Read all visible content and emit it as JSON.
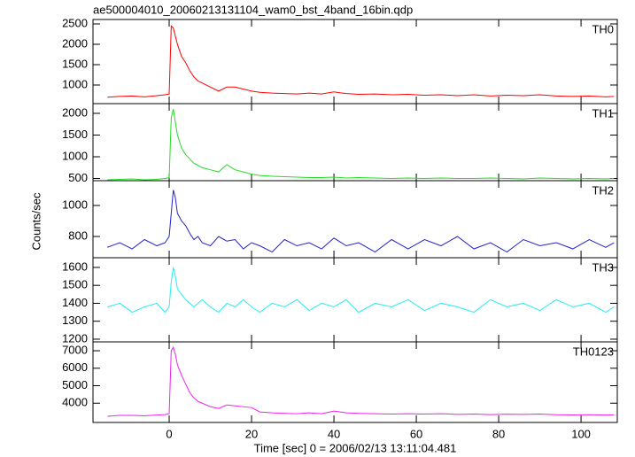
{
  "chart_data": [
    {
      "type": "line",
      "title": "ae500004010_20060213131104_wam0_bst_4band_16bin.qdp",
      "x": [
        -15,
        -12,
        -9,
        -6,
        -3,
        -1,
        0,
        0.5,
        1,
        1.5,
        2,
        3,
        4,
        5,
        6,
        7,
        8,
        10,
        12,
        14,
        16,
        18,
        20,
        22,
        25,
        28,
        31,
        34,
        37,
        40,
        43,
        46,
        50,
        54,
        58,
        62,
        66,
        70,
        74,
        78,
        82,
        86,
        90,
        94,
        98,
        102,
        106,
        108
      ],
      "xlim": [
        -18.5,
        108.8
      ],
      "ylim": [
        543,
        2609
      ],
      "yticks": [
        1000,
        1500,
        2000,
        2500
      ],
      "series": [
        {
          "name": "TH0",
          "color": "#ff0000",
          "values": [
            700,
            720,
            730,
            710,
            740,
            760,
            780,
            2450,
            2400,
            2200,
            2000,
            1700,
            1550,
            1350,
            1200,
            1100,
            1050,
            950,
            850,
            950,
            950,
            900,
            850,
            820,
            800,
            790,
            780,
            800,
            780,
            830,
            790,
            770,
            780,
            760,
            770,
            750,
            760,
            740,
            760,
            730,
            750,
            740,
            760,
            730,
            720,
            730,
            710,
            720
          ]
        }
      ]
    },
    {
      "type": "line",
      "x": [
        -15,
        -12,
        -9,
        -6,
        -3,
        -1,
        0,
        0.5,
        1,
        1.5,
        2,
        3,
        4,
        5,
        6,
        7,
        8,
        10,
        12,
        14,
        16,
        18,
        20,
        22,
        25,
        28,
        31,
        34,
        37,
        40,
        43,
        46,
        50,
        54,
        58,
        62,
        66,
        70,
        74,
        78,
        82,
        86,
        90,
        94,
        98,
        102,
        106,
        108
      ],
      "xlim": [
        -18.5,
        108.8
      ],
      "ylim": [
        449,
        2224
      ],
      "yticks": [
        500,
        1000,
        1500,
        2000
      ],
      "series": [
        {
          "name": "TH1",
          "color": "#22dd22",
          "values": [
            470,
            480,
            490,
            470,
            480,
            500,
            520,
            1900,
            2100,
            1800,
            1500,
            1200,
            1050,
            950,
            850,
            800,
            750,
            700,
            650,
            820,
            700,
            650,
            600,
            570,
            550,
            540,
            530,
            520,
            520,
            530,
            510,
            520,
            510,
            500,
            510,
            500,
            510,
            500,
            500,
            510,
            500,
            490,
            510,
            500,
            490,
            500,
            490,
            500
          ]
        }
      ]
    },
    {
      "type": "line",
      "ylabel": "Counts/sec",
      "x": [
        -15,
        -12,
        -9,
        -6,
        -3,
        -1,
        0,
        0.5,
        1,
        1.5,
        2,
        3,
        4,
        5,
        6,
        7,
        8,
        10,
        12,
        14,
        16,
        18,
        20,
        22,
        25,
        28,
        31,
        34,
        37,
        40,
        43,
        46,
        50,
        54,
        58,
        62,
        66,
        70,
        74,
        78,
        82,
        86,
        90,
        94,
        98,
        102,
        106,
        108
      ],
      "xlim": [
        -18.5,
        108.8
      ],
      "ylim": [
        663,
        1160
      ],
      "yticks": [
        800,
        1000
      ],
      "series": [
        {
          "name": "TH2",
          "color": "#2222cc",
          "values": [
            730,
            760,
            720,
            780,
            740,
            760,
            800,
            950,
            1100,
            1050,
            950,
            900,
            870,
            820,
            780,
            800,
            760,
            740,
            800,
            770,
            780,
            720,
            760,
            740,
            700,
            780,
            740,
            760,
            720,
            790,
            740,
            760,
            700,
            780,
            720,
            780,
            740,
            800,
            720,
            760,
            700,
            780,
            740,
            760,
            720,
            780,
            730,
            760
          ]
        }
      ]
    },
    {
      "type": "line",
      "x": [
        -15,
        -12,
        -9,
        -6,
        -3,
        -1,
        0,
        0.5,
        1,
        1.5,
        2,
        3,
        4,
        5,
        6,
        7,
        8,
        10,
        12,
        14,
        16,
        18,
        20,
        22,
        25,
        28,
        31,
        34,
        37,
        40,
        43,
        46,
        50,
        54,
        58,
        62,
        66,
        70,
        74,
        78,
        82,
        86,
        90,
        94,
        98,
        102,
        106,
        108
      ],
      "xlim": [
        -18.5,
        108.8
      ],
      "ylim": [
        1185,
        1654
      ],
      "yticks": [
        1200,
        1300,
        1400,
        1500,
        1600
      ],
      "series": [
        {
          "name": "TH3",
          "color": "#22eeee",
          "values": [
            1380,
            1400,
            1350,
            1380,
            1400,
            1350,
            1380,
            1520,
            1600,
            1550,
            1480,
            1450,
            1420,
            1400,
            1380,
            1400,
            1420,
            1380,
            1350,
            1400,
            1380,
            1420,
            1380,
            1350,
            1400,
            1380,
            1420,
            1360,
            1400,
            1380,
            1420,
            1350,
            1400,
            1380,
            1420,
            1360,
            1400,
            1380,
            1350,
            1420,
            1380,
            1400,
            1360,
            1420,
            1380,
            1400,
            1350,
            1380
          ]
        }
      ]
    },
    {
      "type": "line",
      "xlabel": "Time [sec] 0 = 2006/02/13 13:11:04.481",
      "x": [
        -15,
        -12,
        -9,
        -6,
        -3,
        -1,
        0,
        0.5,
        1,
        1.5,
        2,
        3,
        4,
        5,
        6,
        7,
        8,
        10,
        12,
        14,
        16,
        18,
        20,
        22,
        25,
        28,
        31,
        34,
        37,
        40,
        43,
        46,
        50,
        54,
        58,
        62,
        66,
        70,
        74,
        78,
        82,
        86,
        90,
        94,
        98,
        102,
        106,
        108
      ],
      "xlim": [
        -18.5,
        108.8
      ],
      "xticks": [
        0,
        20,
        40,
        60,
        80,
        100
      ],
      "ylim": [
        2898,
        7508
      ],
      "yticks": [
        4000,
        5000,
        6000,
        7000
      ],
      "series": [
        {
          "name": "TH0123",
          "color": "#ee22ee",
          "values": [
            3250,
            3300,
            3300,
            3280,
            3320,
            3350,
            3400,
            7000,
            7200,
            6800,
            6200,
            5600,
            5100,
            4600,
            4300,
            4100,
            4000,
            3800,
            3700,
            3900,
            3850,
            3800,
            3750,
            3500,
            3450,
            3420,
            3400,
            3450,
            3400,
            3550,
            3450,
            3420,
            3400,
            3380,
            3400,
            3380,
            3400,
            3360,
            3380,
            3350,
            3370,
            3360,
            3380,
            3340,
            3330,
            3340,
            3320,
            3330
          ]
        }
      ]
    }
  ]
}
